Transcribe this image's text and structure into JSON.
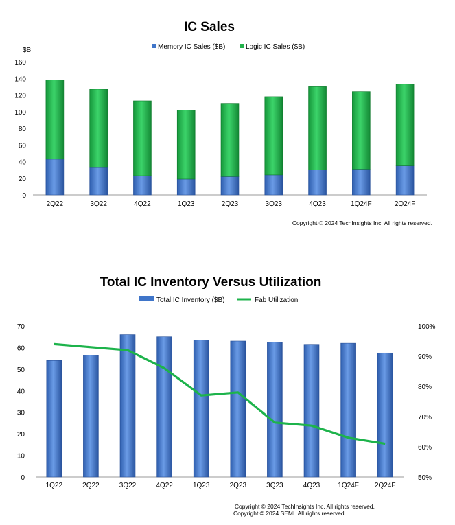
{
  "chart_data": [
    {
      "type": "bar",
      "stacked": true,
      "title": "IC Sales",
      "ylabel": "$B",
      "categories": [
        "2Q22",
        "3Q22",
        "4Q22",
        "1Q23",
        "2Q23",
        "3Q23",
        "4Q23",
        "1Q24F",
        "2Q24F"
      ],
      "series": [
        {
          "name": "Memory IC Sales ($B)",
          "color": "#3F75C9",
          "values": [
            43,
            33,
            23,
            19,
            22,
            24,
            30,
            31,
            35
          ]
        },
        {
          "name": "Logic IC Sales ($B)",
          "color": "#23B24B",
          "values": [
            95,
            94,
            90,
            83,
            88,
            94,
            100,
            93,
            98
          ]
        }
      ],
      "ylim": [
        0,
        160
      ],
      "yticks": [
        0,
        20,
        40,
        60,
        80,
        100,
        120,
        140,
        160
      ],
      "grid": false,
      "legend_position": "top",
      "copyright": "Copyright © 2024 TechInsights Inc.  All rights reserved."
    },
    {
      "type": "bar+line",
      "title": "Total IC Inventory Versus Utilization",
      "categories": [
        "1Q22",
        "2Q22",
        "3Q22",
        "4Q22",
        "1Q23",
        "2Q23",
        "3Q23",
        "4Q23",
        "1Q24F",
        "2Q24F"
      ],
      "series": [
        {
          "name": "Total IC Inventory ($B)",
          "type": "bar",
          "axis": "left",
          "color": "#3F75C9",
          "values": [
            54,
            56.5,
            66,
            65,
            63.5,
            63,
            62.5,
            61.5,
            62,
            57.5
          ]
        },
        {
          "name": "Fab Utilization",
          "type": "line",
          "axis": "right",
          "color": "#1DB34B",
          "values": [
            94,
            93,
            92,
            86,
            77,
            78,
            68,
            67,
            63,
            61
          ]
        }
      ],
      "ylim": [
        0,
        70
      ],
      "yticks": [
        0,
        10,
        20,
        30,
        40,
        50,
        60,
        70
      ],
      "y2lim": [
        50,
        100
      ],
      "y2ticks": [
        "50%",
        "60%",
        "70%",
        "80%",
        "90%",
        "100%"
      ],
      "grid": false,
      "legend_position": "top",
      "copyright_lines": [
        "Copyright © 2024 TechInsights Inc.  All rights reserved.",
        "Copyright © 2024 SEMI.  All rights reserved."
      ]
    }
  ]
}
